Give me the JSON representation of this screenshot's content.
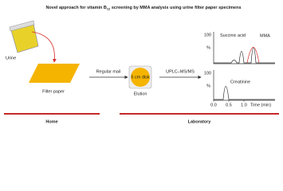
{
  "header": {
    "title_start": "Novel approach for vitamin B",
    "title_subscript": "12",
    "title_end": " screening by MMA analysis using urine filter paper specimens"
  },
  "steps": {
    "urine": "Urine",
    "filter_paper": "Filter paper",
    "mail": "Regular mail",
    "disk": "5 cm disk",
    "elution": "Elution",
    "method": "UPLC–MS/MS"
  },
  "chromatogram": {
    "succinic": "Succinic acid",
    "mma": "MMA",
    "creatinine": "Creatinine",
    "y_label": "%",
    "y_top": "100",
    "x_ticks": [
      "0.0",
      "0.5",
      "1.0"
    ],
    "x_label": "Time (min)"
  },
  "footer": {
    "home": "Home",
    "laboratory": "Laboratory"
  }
}
